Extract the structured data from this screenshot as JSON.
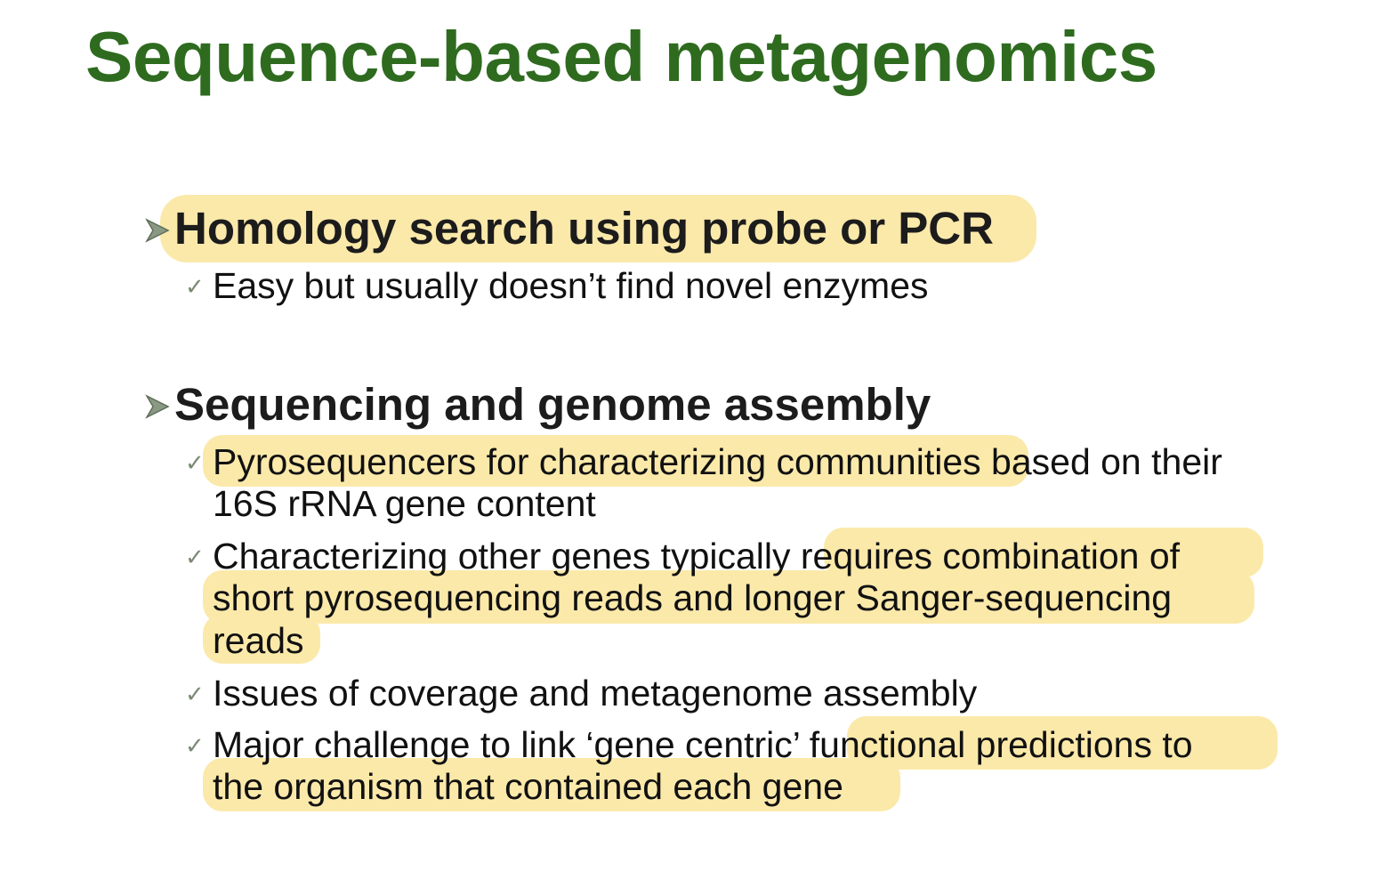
{
  "title": "Sequence-based metagenomics",
  "sections": [
    {
      "heading": "Homology search using probe or PCR",
      "bullet_icon": "arrowhead-bullet-icon",
      "items": [
        {
          "bullet_icon": "checkmark-bullet-icon",
          "lines": [
            "Easy but usually doesn’t find novel enzymes"
          ]
        }
      ]
    },
    {
      "heading": "Sequencing and genome assembly",
      "bullet_icon": "arrowhead-bullet-icon",
      "items": [
        {
          "bullet_icon": "checkmark-bullet-icon",
          "lines": [
            "Pyrosequencers for characterizing communities based on their",
            "16S rRNA gene content"
          ]
        },
        {
          "bullet_icon": "checkmark-bullet-icon",
          "lines": [
            "Characterizing other genes typically requires combination of",
            "short pyrosequencing reads and longer Sanger-sequencing",
            "reads"
          ]
        },
        {
          "bullet_icon": "checkmark-bullet-icon",
          "lines": [
            "Issues of coverage and metagenome assembly"
          ]
        },
        {
          "bullet_icon": "checkmark-bullet-icon",
          "lines": [
            "Major challenge to link ‘gene centric’ functional predictions to",
            "the organism that contained each gene"
          ]
        }
      ]
    }
  ],
  "colors": {
    "title": "#2e6b1f",
    "highlight": "#fbe9aa",
    "text": "#111111",
    "bullet": "#7a8a74"
  }
}
